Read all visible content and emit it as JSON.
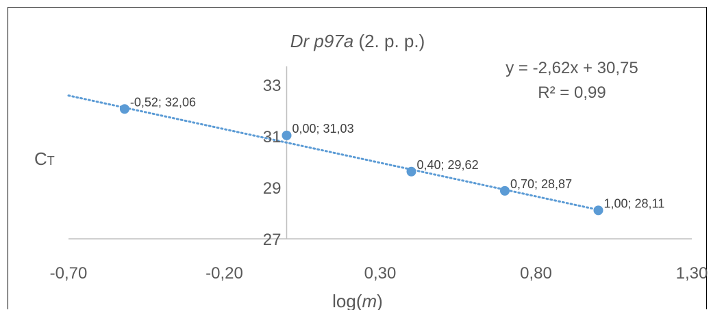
{
  "chart_data": {
    "type": "scatter",
    "title": {
      "italic": "Dr p97a",
      "rest": " (2. p. p.)"
    },
    "xlabel": {
      "prefix": "log(",
      "italic": "m",
      "suffix": ")"
    },
    "ylabel": {
      "main": "C",
      "sub": "T"
    },
    "xlim": [
      -0.7,
      1.3
    ],
    "ylim": [
      27,
      35
    ],
    "x_ticks": [
      {
        "value": -0.7,
        "label": "-0,70"
      },
      {
        "value": -0.2,
        "label": "-0,20"
      },
      {
        "value": 0.3,
        "label": "0,30"
      },
      {
        "value": 0.8,
        "label": "0,80"
      },
      {
        "value": 1.3,
        "label": "1,30"
      }
    ],
    "y_ticks": [
      {
        "value": 27,
        "label": "27"
      },
      {
        "value": 29,
        "label": "29"
      },
      {
        "value": 31,
        "label": "31"
      },
      {
        "value": 33,
        "label": "33"
      }
    ],
    "series": [
      {
        "points": [
          {
            "x": -0.52,
            "y": 32.06,
            "label": "-0,52; 32,06"
          },
          {
            "x": 0.0,
            "y": 31.03,
            "label": "0,00; 31,03"
          },
          {
            "x": 0.4,
            "y": 29.62,
            "label": "0,40; 29,62"
          },
          {
            "x": 0.7,
            "y": 28.87,
            "label": "0,70; 28,87"
          },
          {
            "x": 1.0,
            "y": 28.11,
            "label": "1,00; 28,11"
          }
        ],
        "color": "#5B9BD5"
      }
    ],
    "trendline": {
      "slope": -2.62,
      "intercept": 30.75,
      "x_range": [
        -0.7,
        1.0
      ],
      "equation": "y = -2,62x + 30,75",
      "r_squared": "R² = 0,99",
      "color": "#5B9BD5",
      "style": "dotted"
    },
    "grid": false,
    "legend": "none"
  }
}
